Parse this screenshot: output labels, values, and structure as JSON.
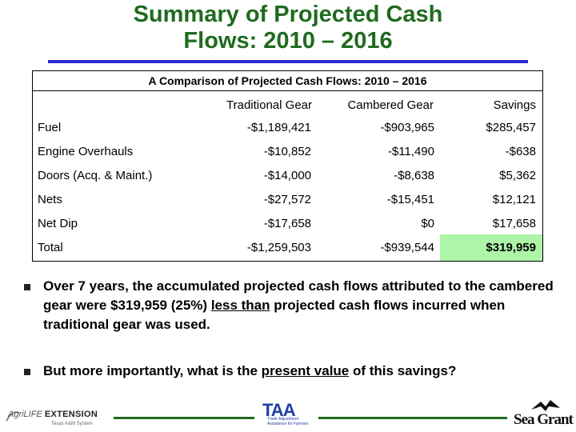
{
  "slide": {
    "title_line1": "Summary of Projected Cash",
    "title_line2": "Flows: 2010 – 2016"
  },
  "table": {
    "title": "A Comparison of Projected Cash Flows: 2010 – 2016",
    "headers": [
      "",
      "Traditional Gear",
      "Cambered Gear",
      "Savings"
    ],
    "rows": [
      {
        "label": "Fuel",
        "traditional": "-$1,189,421",
        "cambered": "-$903,965",
        "savings": "$285,457"
      },
      {
        "label": "Engine Overhauls",
        "traditional": "-$10,852",
        "cambered": "-$11,490",
        "savings": "-$638"
      },
      {
        "label": "Doors (Acq. & Maint.)",
        "traditional": "-$14,000",
        "cambered": "-$8,638",
        "savings": "$5,362"
      },
      {
        "label": "Nets",
        "traditional": "-$27,572",
        "cambered": "-$15,451",
        "savings": "$12,121"
      },
      {
        "label": "Net Dip",
        "traditional": "-$17,658",
        "cambered": "$0",
        "savings": "$17,658"
      },
      {
        "label": "Total",
        "traditional": "-$1,259,503",
        "cambered": "-$939,544",
        "savings": "$319,959"
      }
    ],
    "highlight_color": "#aef5a8"
  },
  "bullets": {
    "b1_pre": "Over 7 years, the accumulated projected cash flows attributed to the cambered gear were $319,959 (25%) ",
    "b1_underline": "less than",
    "b1_post": " projected cash flows incurred when traditional gear was used.",
    "b2_pre": "But more importantly, what is the ",
    "b2_underline": "present value",
    "b2_post": " of this savings?"
  },
  "footer": {
    "agrilife_brand": "AgriLIFE",
    "agrilife_word": "EXTENSION",
    "agrilife_sub": "Texas A&M System",
    "taa_mark": "TAA",
    "taa_sub": "Trade Adjustment Assistance for Farmers",
    "seagrant": "Sea Grant"
  },
  "colors": {
    "title": "#1f6b1f",
    "title_rule": "#2a2ad0",
    "footer_line": "#1f6b1f",
    "taa": "#1f3fa6"
  }
}
